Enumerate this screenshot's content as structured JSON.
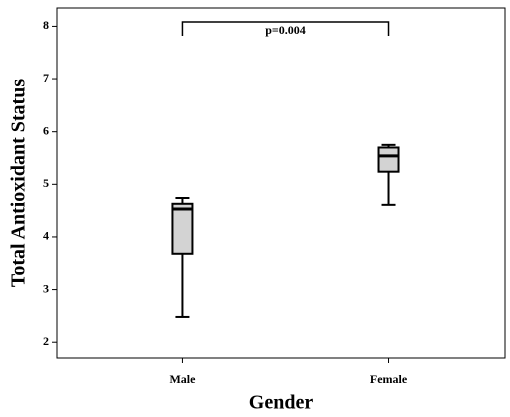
{
  "chart_data": {
    "type": "box",
    "x_label": "Gender",
    "y_label": "Total Antioxidant Status",
    "annotation": "p=0.004",
    "categories": [
      "Male",
      "Female"
    ],
    "boxes": [
      {
        "whisker_low": 2.48,
        "q1": 3.68,
        "median": 4.53,
        "q3": 4.63,
        "whisker_high": 4.74
      },
      {
        "whisker_low": 4.61,
        "q1": 5.24,
        "median": 5.54,
        "q3": 5.7,
        "whisker_high": 5.75
      }
    ],
    "color": "#d3d3d3",
    "ylim": [
      1.7,
      8.35
    ],
    "yticks": [
      2,
      3,
      4,
      5,
      6,
      7,
      8
    ],
    "grid": false
  }
}
